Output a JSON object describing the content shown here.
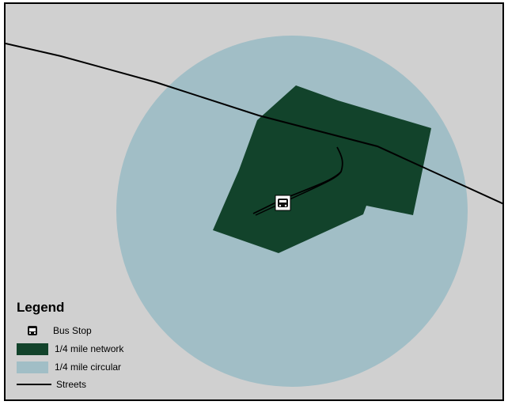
{
  "colors": {
    "background": "#d0d0d0",
    "circular": "#a1bec6",
    "network": "#12432b",
    "street": "#000000",
    "frame": "#000000"
  },
  "legend": {
    "title": "Legend",
    "items": [
      {
        "label": "Bus Stop",
        "icon": "bus-stop-icon"
      },
      {
        "label": "1/4 mile network",
        "color": "#12432b"
      },
      {
        "label": "1/4 mile circular",
        "color": "#a1bec6"
      },
      {
        "label": "Streets",
        "color": "#000000"
      }
    ]
  }
}
